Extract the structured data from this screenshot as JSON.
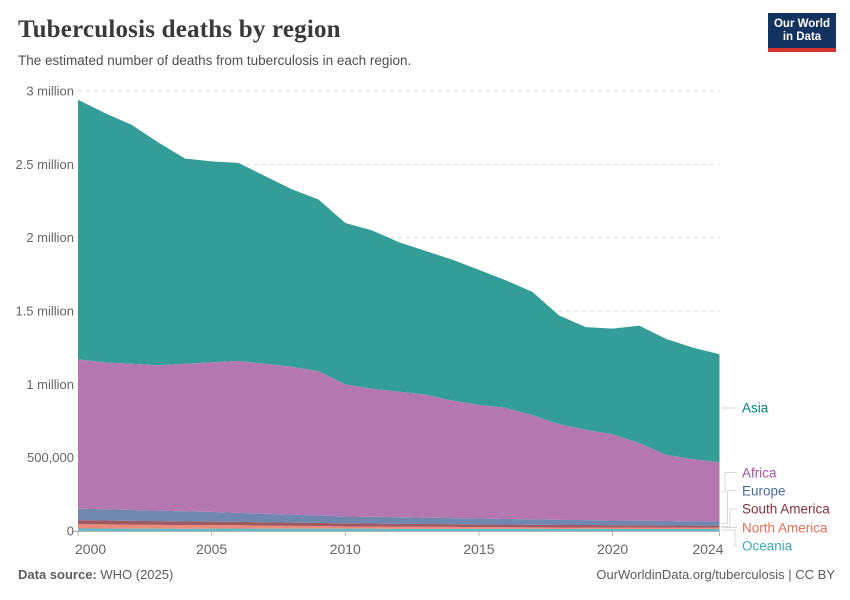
{
  "header": {
    "title": "Tuberculosis deaths by region",
    "subtitle": "The estimated number of deaths from tuberculosis in each region."
  },
  "logo": {
    "line1": "Our World",
    "line2": "in Data",
    "bg_color": "#13325F",
    "accent_color": "#D0342C"
  },
  "footer": {
    "source_label": "Data source:",
    "source_value": " WHO (2025)",
    "credit": "OurWorldinData.org/tuberculosis | CC BY"
  },
  "chart_data": {
    "type": "area",
    "stacked": true,
    "title": "Tuberculosis deaths by region",
    "grid": true,
    "legend_position": "right",
    "fill_opacity": 0.8,
    "xlim": [
      2000,
      2024
    ],
    "ylim": [
      0,
      3000000
    ],
    "x": [
      2000,
      2001,
      2002,
      2003,
      2004,
      2005,
      2006,
      2007,
      2008,
      2009,
      2010,
      2011,
      2012,
      2013,
      2014,
      2015,
      2016,
      2017,
      2018,
      2019,
      2020,
      2021,
      2022,
      2023,
      2024
    ],
    "series": [
      {
        "name": "Oceania",
        "color": "#38AABA",
        "values": [
          17000,
          17000,
          16000,
          16000,
          15000,
          16000,
          17000,
          16000,
          16000,
          16000,
          16000,
          16000,
          15000,
          15000,
          15000,
          15000,
          15000,
          15000,
          14000,
          15000,
          14000,
          14000,
          14000,
          14000,
          14000
        ]
      },
      {
        "name": "North America",
        "color": "#E56E5A",
        "values": [
          30000,
          29000,
          27000,
          26000,
          25000,
          24000,
          22000,
          20000,
          19000,
          18000,
          15000,
          15000,
          14000,
          14000,
          13000,
          11000,
          11000,
          10000,
          10000,
          9000,
          9000,
          9000,
          8000,
          8000,
          8000
        ]
      },
      {
        "name": "South America",
        "color": "#883039",
        "values": [
          27000,
          26000,
          26000,
          25000,
          25000,
          24000,
          23000,
          23000,
          22000,
          21000,
          21000,
          20000,
          20000,
          19000,
          19000,
          19000,
          18000,
          18000,
          17000,
          17000,
          17000,
          16000,
          16000,
          15000,
          15000
        ]
      },
      {
        "name": "Europe",
        "color": "#4C6A9C",
        "values": [
          78000,
          76000,
          74000,
          72000,
          69000,
          66000,
          62000,
          59000,
          55000,
          51000,
          48000,
          46000,
          45000,
          43000,
          41000,
          40000,
          38000,
          36000,
          35000,
          33000,
          32000,
          31000,
          30000,
          29000,
          28000
        ]
      },
      {
        "name": "Africa",
        "color": "#A2559C",
        "values": [
          1018000,
          1002000,
          997000,
          991000,
          1006000,
          1020000,
          1036000,
          1022000,
          1008000,
          984000,
          900000,
          873000,
          856000,
          839000,
          802000,
          775000,
          758000,
          711000,
          653000,
          616000,
          588000,
          530000,
          452000,
          424000,
          405000
        ]
      },
      {
        "name": "Asia",
        "color": "#00847E",
        "values": [
          1770000,
          1700000,
          1630000,
          1520000,
          1400000,
          1370000,
          1350000,
          1280000,
          1210000,
          1170000,
          1100000,
          1080000,
          1020000,
          980000,
          960000,
          920000,
          870000,
          840000,
          740000,
          700000,
          720000,
          800000,
          790000,
          760000,
          735000
        ]
      }
    ],
    "legend_order": [
      "Asia",
      "Africa",
      "Europe",
      "South America",
      "North America",
      "Oceania"
    ],
    "y_ticks": [
      {
        "value": 0,
        "label": "0"
      },
      {
        "value": 500000,
        "label": "500,000"
      },
      {
        "value": 1000000,
        "label": "1 million"
      },
      {
        "value": 1500000,
        "label": "1.5 million"
      },
      {
        "value": 2000000,
        "label": "2 million"
      },
      {
        "value": 2500000,
        "label": "2.5 million"
      },
      {
        "value": 3000000,
        "label": "3 million"
      }
    ],
    "x_ticks": [
      {
        "value": 2000,
        "label": "2000"
      },
      {
        "value": 2005,
        "label": "2005"
      },
      {
        "value": 2010,
        "label": "2010"
      },
      {
        "value": 2015,
        "label": "2015"
      },
      {
        "value": 2020,
        "label": "2020"
      },
      {
        "value": 2024,
        "label": "2024"
      }
    ]
  }
}
